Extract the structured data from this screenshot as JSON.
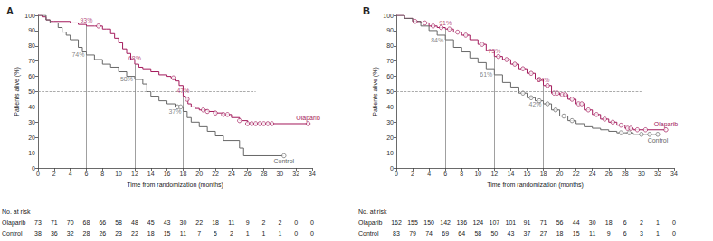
{
  "chart_data": [
    {
      "type": "line",
      "title": "A",
      "xlabel": "Time from randomization (months)",
      "ylabel": "Patients alive (%)",
      "xlim": [
        0,
        34
      ],
      "xticks": [
        0,
        2,
        4,
        6,
        8,
        10,
        12,
        14,
        16,
        18,
        20,
        22,
        24,
        26,
        28,
        30,
        32,
        34
      ],
      "ylim": [
        0,
        100
      ],
      "yticks": [
        0,
        10,
        20,
        30,
        40,
        50,
        60,
        70,
        80,
        90,
        100
      ],
      "grid": false,
      "reference_line": {
        "y": 50,
        "x": [
          0,
          27
        ]
      },
      "series": [
        {
          "name": "Olaparib",
          "color": "#a3195b",
          "line_style": "step",
          "x": [
            0,
            0.5,
            1,
            1.5,
            2,
            3,
            4,
            5,
            6,
            7,
            8,
            8.5,
            9,
            9.5,
            10,
            10.5,
            11,
            11.5,
            12,
            12.5,
            13,
            14,
            15,
            16,
            16.5,
            17,
            17.5,
            18,
            18.3,
            18.6,
            19,
            19.5,
            20,
            21,
            22,
            23,
            24,
            25,
            26,
            28,
            30,
            33.5
          ],
          "values": [
            100,
            99,
            97,
            96,
            96,
            96,
            95,
            94,
            93,
            93,
            91,
            91,
            88,
            85,
            82,
            78,
            75,
            71,
            68,
            66,
            65,
            63,
            61,
            60,
            59,
            57,
            54,
            47,
            45,
            42,
            40,
            39,
            38,
            37,
            36,
            35,
            33,
            31,
            29,
            29,
            29,
            29
          ],
          "censored": [
            [
              7.5,
              93
            ],
            [
              16.8,
              59
            ],
            [
              18.5,
              45
            ],
            [
              20.5,
              38
            ],
            [
              21,
              37
            ],
            [
              22,
              36
            ],
            [
              23,
              35
            ],
            [
              23.5,
              35
            ],
            [
              25,
              31
            ],
            [
              26,
              29
            ],
            [
              26.5,
              29
            ],
            [
              27,
              29
            ],
            [
              27.5,
              29
            ],
            [
              28,
              29
            ],
            [
              28.5,
              29
            ],
            [
              29,
              29
            ],
            [
              33.5,
              29
            ]
          ]
        },
        {
          "name": "Control",
          "color": "#666666",
          "line_style": "step",
          "x": [
            0,
            1,
            1.5,
            2,
            2.5,
            3,
            3.5,
            4,
            5,
            5.5,
            6,
            7,
            8,
            9,
            10,
            11,
            12,
            13,
            13.5,
            14,
            15,
            16,
            17,
            18,
            18.5,
            19,
            20,
            21,
            22,
            23,
            25,
            25.5,
            30.5
          ],
          "values": [
            100,
            97,
            95,
            95,
            92,
            89,
            87,
            84,
            79,
            76,
            74,
            71,
            68,
            66,
            63,
            60,
            58,
            55,
            50,
            47,
            44,
            42,
            40,
            37,
            33,
            30,
            27,
            24,
            21,
            18,
            13,
            8,
            8
          ],
          "censored": [
            [
              17.3,
              40
            ],
            [
              17.7,
              40
            ],
            [
              30.5,
              8
            ]
          ]
        }
      ],
      "annotations": [
        {
          "series": "Olaparib",
          "x": 6,
          "y": 93,
          "label": "93%"
        },
        {
          "series": "Olaparib",
          "x": 12,
          "y": 68,
          "label": "68%"
        },
        {
          "series": "Olaparib",
          "x": 18,
          "y": 47,
          "label": "47%"
        },
        {
          "series": "Control",
          "x": 6,
          "y": 74,
          "label": "74%"
        },
        {
          "series": "Control",
          "x": 12,
          "y": 58,
          "label": "58%"
        },
        {
          "series": "Control",
          "x": 18,
          "y": 37,
          "label": "37%"
        }
      ],
      "at_risk": {
        "title": "No. at risk",
        "x": [
          0,
          2,
          4,
          6,
          8,
          10,
          12,
          14,
          16,
          18,
          20,
          22,
          24,
          26,
          28,
          30,
          32,
          34
        ],
        "rows": [
          {
            "name": "Olaparib",
            "values": [
              73,
              71,
              70,
              68,
              66,
              58,
              48,
              45,
              43,
              30,
              22,
              18,
              11,
              9,
              2,
              2,
              0,
              0
            ]
          },
          {
            "name": "Control",
            "values": [
              38,
              36,
              32,
              28,
              26,
              23,
              22,
              18,
              15,
              11,
              7,
              5,
              2,
              1,
              1,
              1,
              0,
              0
            ]
          }
        ]
      }
    },
    {
      "type": "line",
      "title": "B",
      "xlabel": "Time from randomization (months)",
      "ylabel": "Patients alive (%)",
      "xlim": [
        0,
        34
      ],
      "xticks": [
        0,
        2,
        4,
        6,
        8,
        10,
        12,
        14,
        16,
        18,
        20,
        22,
        24,
        26,
        28,
        30,
        32,
        34
      ],
      "ylim": [
        0,
        100
      ],
      "yticks": [
        0,
        10,
        20,
        30,
        40,
        50,
        60,
        70,
        80,
        90,
        100
      ],
      "grid": false,
      "reference_line": {
        "y": 50,
        "x": [
          0,
          30
        ]
      },
      "series": [
        {
          "name": "Olaparib",
          "color": "#a3195b",
          "line_style": "step",
          "x": [
            0,
            1,
            2,
            3,
            4,
            5,
            6,
            7,
            8,
            9,
            10,
            11,
            12,
            13,
            14,
            15,
            16,
            17,
            18,
            19,
            20,
            21,
            22,
            23,
            24,
            25,
            26,
            27,
            28,
            29,
            33
          ],
          "values": [
            100,
            98,
            96,
            95,
            93,
            92,
            91,
            89,
            87,
            84,
            81,
            77,
            73,
            71,
            68,
            65,
            62,
            58,
            54,
            49,
            48,
            45,
            42,
            38,
            35,
            32,
            30,
            28,
            26,
            25,
            25
          ],
          "censored": [
            [
              2.3,
              96
            ],
            [
              3.5,
              95
            ],
            [
              4.5,
              93
            ],
            [
              5.5,
              92
            ],
            [
              6.5,
              91
            ],
            [
              7.5,
              89
            ],
            [
              8.5,
              87
            ],
            [
              10.5,
              81
            ],
            [
              12.5,
              73
            ],
            [
              13.5,
              71
            ],
            [
              14.5,
              68
            ],
            [
              15.5,
              65
            ],
            [
              16.5,
              62
            ],
            [
              17.5,
              58
            ],
            [
              18.5,
              54
            ],
            [
              19.3,
              49
            ],
            [
              19.7,
              49
            ],
            [
              20.3,
              48
            ],
            [
              20.7,
              48
            ],
            [
              21.5,
              45
            ],
            [
              22.3,
              42
            ],
            [
              22.7,
              42
            ],
            [
              23.5,
              38
            ],
            [
              24.5,
              35
            ],
            [
              25.5,
              32
            ],
            [
              26.5,
              30
            ],
            [
              27.5,
              28
            ],
            [
              28.3,
              26
            ],
            [
              28.7,
              26
            ],
            [
              29.5,
              25
            ],
            [
              30.5,
              25
            ],
            [
              33,
              25
            ]
          ]
        },
        {
          "name": "Control",
          "color": "#666666",
          "line_style": "step",
          "x": [
            0,
            1,
            2,
            3,
            4,
            5,
            6,
            7,
            8,
            9,
            10,
            11,
            12,
            13,
            14,
            15,
            16,
            17,
            18,
            19,
            20,
            21,
            22,
            23,
            24,
            25,
            26,
            27,
            28,
            29,
            32
          ],
          "values": [
            100,
            98,
            96,
            93,
            90,
            87,
            84,
            79,
            76,
            72,
            69,
            65,
            61,
            56,
            53,
            49,
            46,
            44,
            42,
            38,
            34,
            31,
            29,
            27,
            26,
            25,
            24,
            23,
            23,
            22,
            22
          ],
          "censored": [
            [
              15.5,
              49
            ],
            [
              16.5,
              46
            ],
            [
              17.5,
              44
            ],
            [
              18.5,
              42
            ],
            [
              19.5,
              38
            ],
            [
              20.5,
              34
            ],
            [
              21.5,
              31
            ],
            [
              27.5,
              23
            ],
            [
              28.5,
              23
            ],
            [
              30,
              22
            ],
            [
              31,
              22
            ],
            [
              32,
              22
            ]
          ]
        }
      ],
      "annotations": [
        {
          "series": "Olaparib",
          "x": 6,
          "y": 91,
          "label": "91%"
        },
        {
          "series": "Olaparib",
          "x": 12,
          "y": 73,
          "label": "73%"
        },
        {
          "series": "Olaparib",
          "x": 18,
          "y": 54,
          "label": "54%"
        },
        {
          "series": "Control",
          "x": 6,
          "y": 84,
          "label": "84%"
        },
        {
          "series": "Control",
          "x": 12,
          "y": 61,
          "label": "61%"
        },
        {
          "series": "Control",
          "x": 18,
          "y": 42,
          "label": "42%"
        }
      ],
      "at_risk": {
        "title": "No. at risk",
        "x": [
          0,
          2,
          4,
          6,
          8,
          10,
          12,
          14,
          16,
          18,
          20,
          22,
          24,
          26,
          28,
          30,
          32,
          34
        ],
        "rows": [
          {
            "name": "Olaparib",
            "values": [
              162,
              155,
              150,
              142,
              136,
              124,
              107,
              101,
              91,
              71,
              56,
              44,
              30,
              18,
              6,
              2,
              1,
              0
            ]
          },
          {
            "name": "Control",
            "values": [
              83,
              79,
              74,
              69,
              64,
              58,
              50,
              43,
              37,
              27,
              18,
              15,
              11,
              9,
              6,
              3,
              1,
              0
            ]
          }
        ]
      }
    }
  ]
}
